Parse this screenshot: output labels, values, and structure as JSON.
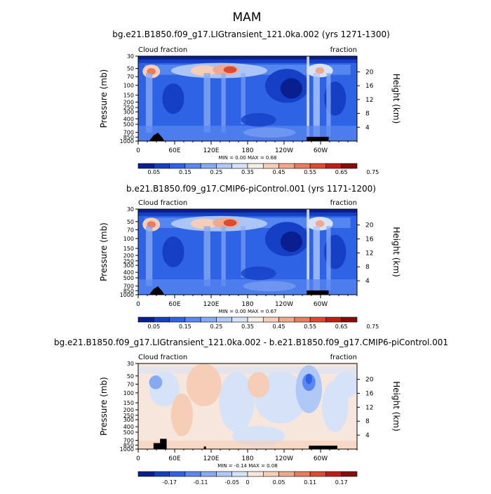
{
  "figure": {
    "title": "MAM"
  },
  "colorbar_specs": {
    "abs": {
      "colors": [
        "#0a1f8f",
        "#1540c6",
        "#2f63e6",
        "#5a88f0",
        "#86a9f3",
        "#b0c8f6",
        "#d6e2f8",
        "#f4ece6",
        "#f6cdb6",
        "#f1a88c",
        "#ea7b5e",
        "#de4a30",
        "#c01d14",
        "#8b0b0b"
      ],
      "labels": [
        "0.05",
        "0.15",
        "0.25",
        "0.35",
        "0.45",
        "0.55",
        "0.65",
        "0.75"
      ]
    },
    "diff": {
      "colors": [
        "#0a1f8f",
        "#1540c6",
        "#2f63e6",
        "#5a88f0",
        "#86a9f3",
        "#b0c8f6",
        "#d6e2f8",
        "#f7e6dc",
        "#f6cdb6",
        "#f1a88c",
        "#ea7b5e",
        "#de4a30",
        "#c01d14",
        "#8b0b0b"
      ],
      "labels": [
        "-0.17",
        "-0.11",
        "-0.05",
        "0",
        "0.05",
        "0.11",
        "0.17"
      ]
    }
  },
  "chart_data": [
    {
      "type": "heatmap",
      "title": "bg.e21.B1850.f09_g17.LIGtransient_121.0ka.002 (yrs 1271-1300)",
      "left_label": "Cloud fraction",
      "right_label": "fraction",
      "ylabel": "Pressure (mb)",
      "y2label": "Height (km)",
      "x_ticks": [
        "0",
        "60E",
        "120E",
        "180",
        "120W",
        "60W"
      ],
      "y_ticks": [
        "30",
        "50",
        "70",
        "100",
        "150",
        "200",
        "250",
        "300",
        "400",
        "500",
        "700",
        "850",
        "1000"
      ],
      "y2_ticks": [
        "20",
        "16",
        "12",
        "8",
        "4"
      ],
      "stats": "MIN =    0.00   MAX =    0.68",
      "colorbar": "abs",
      "data_range": [
        0.0,
        0.68
      ]
    },
    {
      "type": "heatmap",
      "title": "b.e21.B1850.f09_g17.CMIP6-piControl.001 (yrs 1171-1200)",
      "left_label": "Cloud fraction",
      "right_label": "fraction",
      "ylabel": "Pressure (mb)",
      "y2label": "Height (km)",
      "x_ticks": [
        "0",
        "60E",
        "120E",
        "180",
        "120W",
        "60W"
      ],
      "y_ticks": [
        "30",
        "50",
        "70",
        "100",
        "150",
        "200",
        "250",
        "300",
        "400",
        "500",
        "700",
        "850",
        "1000"
      ],
      "y2_ticks": [
        "20",
        "16",
        "12",
        "8",
        "4"
      ],
      "stats": "MIN =    0.00   MAX =    0.67",
      "colorbar": "abs",
      "data_range": [
        0.0,
        0.67
      ]
    },
    {
      "type": "heatmap",
      "title": "bg.e21.B1850.f09_g17.LIGtransient_121.0ka.002 - b.e21.B1850.f09_g17.CMIP6-piControl.001",
      "left_label": "Cloud fraction",
      "right_label": "fraction",
      "ylabel": "Pressure (mb)",
      "y2label": "Height (km)",
      "x_ticks": [
        "0",
        "60E",
        "120E",
        "180",
        "120W",
        "60W"
      ],
      "y_ticks": [
        "30",
        "50",
        "70",
        "100",
        "150",
        "200",
        "250",
        "300",
        "400",
        "500",
        "700",
        "850",
        "1000"
      ],
      "y2_ticks": [
        "20",
        "16",
        "12",
        "8",
        "4"
      ],
      "stats": "MIN =   -0.14   MAX =    0.08",
      "colorbar": "diff",
      "data_range": [
        -0.14,
        0.08
      ]
    }
  ]
}
